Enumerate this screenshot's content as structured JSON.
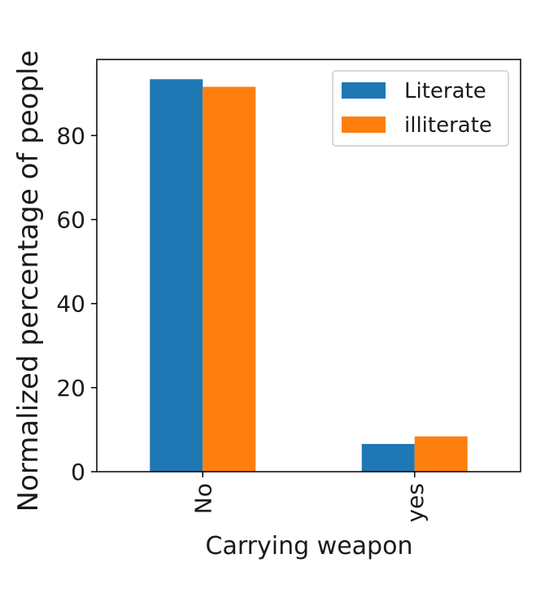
{
  "chart_data": {
    "type": "bar",
    "categories": [
      "No",
      "yes"
    ],
    "series": [
      {
        "name": "Literate",
        "values": [
          93.4,
          6.6
        ],
        "color": "#1f77b4"
      },
      {
        "name": "illiterate",
        "values": [
          91.6,
          8.4
        ],
        "color": "#ff7f0e"
      }
    ],
    "xlabel": "Carrying weapon",
    "ylabel": "Normalized percentage of people",
    "ylim": [
      0,
      98.1
    ],
    "yticks": [
      0,
      20,
      40,
      60,
      80
    ],
    "grid": false,
    "legend_position": "top-right"
  }
}
